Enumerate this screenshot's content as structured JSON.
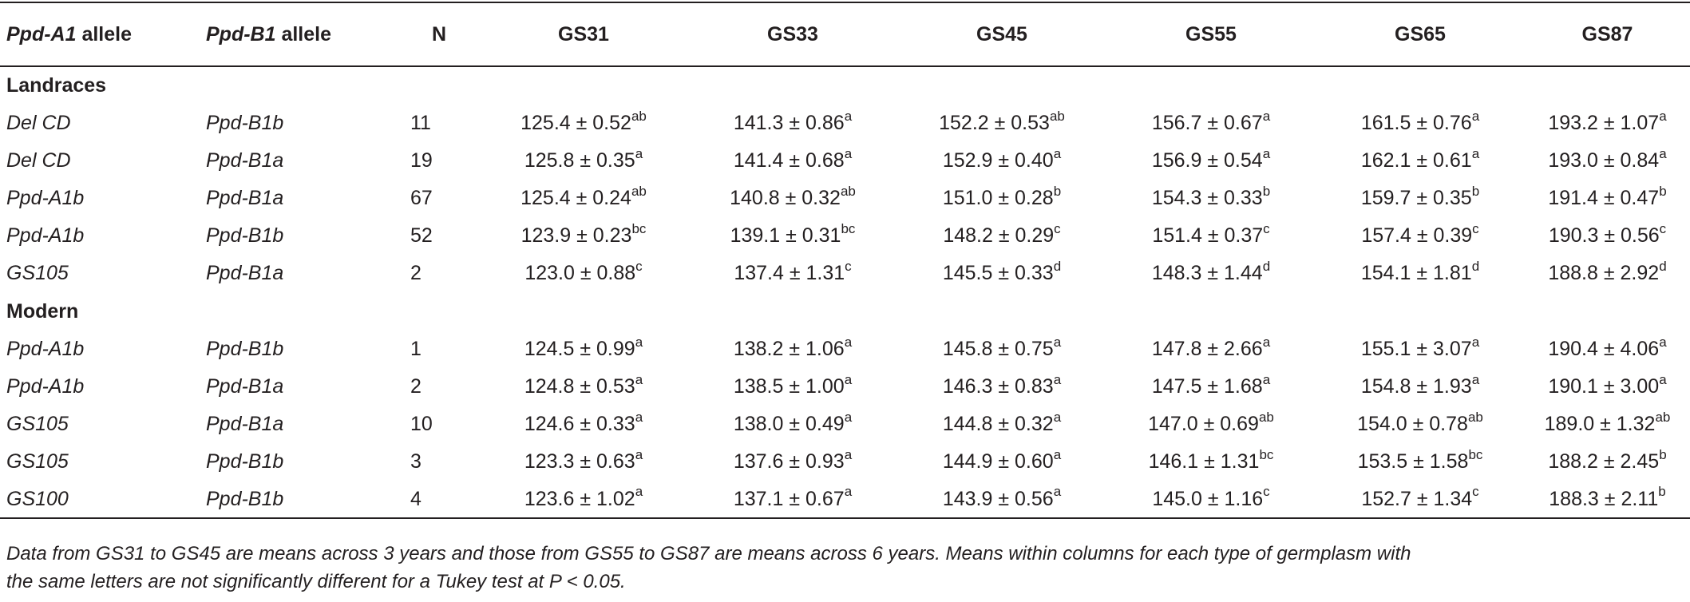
{
  "header": {
    "col0_italic": "Ppd-A1",
    "col0_rest": " allele",
    "col1_italic": "Ppd-B1",
    "col1_rest": " allele",
    "n": "N",
    "gs31": "GS31",
    "gs33": "GS33",
    "gs45": "GS45",
    "gs55": "GS55",
    "gs65": "GS65",
    "gs87": "GS87"
  },
  "groups": [
    {
      "label": "Landraces",
      "rows": [
        {
          "a1": "Del CD",
          "b1": "Ppd-B1b",
          "n": "11",
          "cells": [
            [
              "125.4 ± 0.52",
              "ab"
            ],
            [
              "141.3 ± 0.86",
              "a"
            ],
            [
              "152.2 ± 0.53",
              "ab"
            ],
            [
              "156.7 ± 0.67",
              "a"
            ],
            [
              "161.5 ± 0.76",
              "a"
            ],
            [
              "193.2 ± 1.07",
              "a"
            ]
          ]
        },
        {
          "a1": "Del CD",
          "b1": "Ppd-B1a",
          "n": "19",
          "cells": [
            [
              "125.8 ± 0.35",
              "a"
            ],
            [
              "141.4 ± 0.68",
              "a"
            ],
            [
              "152.9 ± 0.40",
              "a"
            ],
            [
              "156.9 ± 0.54",
              "a"
            ],
            [
              "162.1 ± 0.61",
              "a"
            ],
            [
              "193.0 ± 0.84",
              "a"
            ]
          ]
        },
        {
          "a1": "Ppd-A1b",
          "b1": "Ppd-B1a",
          "n": "67",
          "cells": [
            [
              "125.4 ± 0.24",
              "ab"
            ],
            [
              "140.8 ± 0.32",
              "ab"
            ],
            [
              "151.0 ± 0.28",
              "b"
            ],
            [
              "154.3 ± 0.33",
              "b"
            ],
            [
              "159.7 ± 0.35",
              "b"
            ],
            [
              "191.4 ± 0.47",
              "b"
            ]
          ]
        },
        {
          "a1": "Ppd-A1b",
          "b1": "Ppd-B1b",
          "n": "52",
          "cells": [
            [
              "123.9 ± 0.23",
              "bc"
            ],
            [
              "139.1 ± 0.31",
              "bc"
            ],
            [
              "148.2 ± 0.29",
              "c"
            ],
            [
              "151.4 ± 0.37",
              "c"
            ],
            [
              "157.4 ± 0.39",
              "c"
            ],
            [
              "190.3 ± 0.56",
              "c"
            ]
          ]
        },
        {
          "a1": "GS105",
          "b1": "Ppd-B1a",
          "n": "2",
          "cells": [
            [
              "123.0 ± 0.88",
              "c"
            ],
            [
              "137.4 ± 1.31",
              "c"
            ],
            [
              "145.5 ± 0.33",
              "d"
            ],
            [
              "148.3 ± 1.44",
              "d"
            ],
            [
              "154.1 ± 1.81",
              "d"
            ],
            [
              "188.8 ± 2.92",
              "d"
            ]
          ]
        }
      ]
    },
    {
      "label": "Modern",
      "rows": [
        {
          "a1": "Ppd-A1b",
          "b1": "Ppd-B1b",
          "n": "1",
          "cells": [
            [
              "124.5 ± 0.99",
              "a"
            ],
            [
              "138.2 ± 1.06",
              "a"
            ],
            [
              "145.8 ± 0.75",
              "a"
            ],
            [
              "147.8 ± 2.66",
              "a"
            ],
            [
              "155.1 ± 3.07",
              "a"
            ],
            [
              "190.4 ± 4.06",
              "a"
            ]
          ]
        },
        {
          "a1": "Ppd-A1b",
          "b1": "Ppd-B1a",
          "n": "2",
          "cells": [
            [
              "124.8 ± 0.53",
              "a"
            ],
            [
              "138.5 ± 1.00",
              "a"
            ],
            [
              "146.3 ± 0.83",
              "a"
            ],
            [
              "147.5 ± 1.68",
              "a"
            ],
            [
              "154.8 ± 1.93",
              "a"
            ],
            [
              "190.1 ± 3.00",
              "a"
            ]
          ]
        },
        {
          "a1": "GS105",
          "b1": "Ppd-B1a",
          "n": "10",
          "cells": [
            [
              "124.6 ± 0.33",
              "a"
            ],
            [
              "138.0 ± 0.49",
              "a"
            ],
            [
              "144.8 ± 0.32",
              "a"
            ],
            [
              "147.0 ± 0.69",
              "ab"
            ],
            [
              "154.0 ± 0.78",
              "ab"
            ],
            [
              "189.0 ± 1.32",
              "ab"
            ]
          ]
        },
        {
          "a1": "GS105",
          "b1": "Ppd-B1b",
          "n": "3",
          "cells": [
            [
              "123.3 ± 0.63",
              "a"
            ],
            [
              "137.6 ± 0.93",
              "a"
            ],
            [
              "144.9 ± 0.60",
              "a"
            ],
            [
              "146.1 ± 1.31",
              "bc"
            ],
            [
              "153.5 ± 1.58",
              "bc"
            ],
            [
              "188.2 ± 2.45",
              "b"
            ]
          ]
        },
        {
          "a1": "GS100",
          "b1": "Ppd-B1b",
          "n": "4",
          "cells": [
            [
              "123.6 ± 1.02",
              "a"
            ],
            [
              "137.1 ± 0.67",
              "a"
            ],
            [
              "143.9 ± 0.56",
              "a"
            ],
            [
              "145.0 ± 1.16",
              "c"
            ],
            [
              "152.7 ± 1.34",
              "c"
            ],
            [
              "188.3 ± 2.11",
              "b"
            ]
          ]
        }
      ]
    }
  ],
  "footnote": {
    "line1": "Data from GS31 to GS45 are means across 3 years and those from GS55 to GS87 are means across 6 years. Means within columns for each type of germplasm with",
    "line2": "the same letters are not significantly different for a Tukey test at P < 0.05."
  }
}
